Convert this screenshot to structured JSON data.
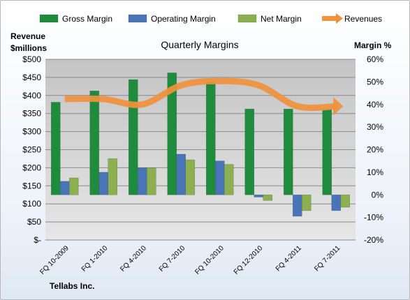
{
  "chart_data": {
    "type": "bar",
    "title": "Quarterly Margins",
    "company": "Tellabs Inc.",
    "categories": [
      "FQ 10-2009",
      "FQ 1-2010",
      "FQ 4-2010",
      "FQ 7-2010",
      "FQ 10-2010",
      "FQ 12-2010",
      "FQ 4-2011",
      "FQ 7-2011"
    ],
    "y_left": {
      "label_line1": "Revenue",
      "label_line2": "$millions",
      "range": [
        0,
        500
      ],
      "ticks": [
        0,
        50,
        100,
        150,
        200,
        250,
        300,
        350,
        400,
        450,
        500
      ],
      "tick_labels": [
        "$-",
        "$50",
        "$100",
        "$150",
        "$200",
        "$250",
        "$300",
        "$350",
        "$400",
        "$450",
        "$500"
      ]
    },
    "y_right": {
      "label": "Margin %",
      "range": [
        -20,
        60
      ],
      "ticks": [
        -20,
        -10,
        0,
        10,
        20,
        30,
        40,
        50,
        60
      ],
      "tick_labels": [
        "-20%",
        "-10%",
        "0%",
        "10%",
        "20%",
        "30%",
        "40%",
        "50%",
        "60%"
      ]
    },
    "series": [
      {
        "name": "Gross Margin",
        "kind": "bar",
        "axis": "right",
        "color": "#1e8c3c",
        "values": [
          41,
          46,
          51,
          54,
          50,
          38,
          38,
          38
        ]
      },
      {
        "name": "Operating Margin",
        "kind": "bar",
        "axis": "right",
        "color": "#4a74b8",
        "values": [
          6,
          10,
          12,
          18,
          15,
          -1,
          -9.5,
          -7
        ]
      },
      {
        "name": "Net Margin",
        "kind": "bar",
        "axis": "right",
        "color": "#8cb050",
        "values": [
          7.5,
          16,
          12,
          15.5,
          13.5,
          -2.5,
          -7,
          -5.5
        ]
      },
      {
        "name": "Revenues",
        "kind": "line",
        "axis": "left",
        "color": "#f0913c",
        "values": [
          390,
          390,
          375,
          428,
          440,
          428,
          370,
          370
        ]
      }
    ],
    "grid": true,
    "legend_position": "top"
  }
}
